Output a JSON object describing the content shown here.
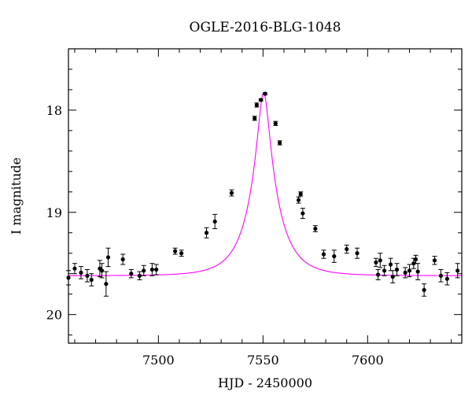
{
  "chart_data": {
    "type": "scatter",
    "title": "OGLE-2016-BLG-1048",
    "xlabel": "HJD - 2450000",
    "ylabel": "I magnitude",
    "xlim": [
      7457,
      7645
    ],
    "ylim": [
      20.28,
      17.4
    ],
    "y_inverted": true,
    "xticks": [
      7500,
      7550,
      7600
    ],
    "yticks": [
      18,
      19,
      20
    ],
    "grid": false,
    "colors": {
      "points": "#000000",
      "fit": "#ff00ff"
    },
    "series": [
      {
        "kind": "observations",
        "x": [
          7457,
          7460,
          7463,
          7466,
          7468,
          7472,
          7473,
          7475,
          7476,
          7483,
          7487,
          7491,
          7493,
          7497,
          7499,
          7508,
          7511,
          7523,
          7527,
          7535,
          7546,
          7547,
          7549,
          7551,
          7556,
          7558,
          7567,
          7568,
          7569,
          7575,
          7579,
          7584,
          7590,
          7595,
          7604,
          7605,
          7606,
          7608,
          7611,
          7612,
          7614,
          7618,
          7620,
          7622,
          7623,
          7624,
          7627,
          7632,
          7635,
          7638,
          7643
        ],
        "y": [
          19.64,
          19.55,
          19.59,
          19.62,
          19.66,
          19.55,
          19.57,
          19.7,
          19.44,
          19.46,
          19.6,
          19.62,
          19.57,
          19.56,
          19.56,
          19.38,
          19.4,
          19.2,
          19.09,
          18.81,
          18.08,
          17.95,
          17.9,
          17.84,
          18.13,
          18.32,
          18.88,
          18.82,
          19.01,
          19.16,
          19.41,
          19.43,
          19.36,
          19.4,
          19.49,
          19.61,
          19.47,
          19.57,
          19.51,
          19.63,
          19.56,
          19.59,
          19.57,
          19.5,
          19.46,
          19.58,
          19.76,
          19.47,
          19.62,
          19.65,
          19.57
        ],
        "yerr": [
          0.07,
          0.05,
          0.06,
          0.06,
          0.06,
          0.08,
          0.07,
          0.12,
          0.09,
          0.05,
          0.04,
          0.04,
          0.05,
          0.06,
          0.05,
          0.03,
          0.03,
          0.05,
          0.07,
          0.03,
          0.02,
          0.02,
          0.01,
          0.01,
          0.02,
          0.02,
          0.03,
          0.02,
          0.05,
          0.03,
          0.04,
          0.06,
          0.04,
          0.05,
          0.04,
          0.05,
          0.07,
          0.05,
          0.06,
          0.06,
          0.06,
          0.05,
          0.06,
          0.05,
          0.04,
          0.08,
          0.06,
          0.04,
          0.06,
          0.06,
          0.07
        ]
      },
      {
        "kind": "model_fit",
        "curve": "magnification",
        "peak_x": 7550.3,
        "peak_mag": 17.83,
        "baseline_mag": 19.62,
        "u0": 0.19,
        "tE": 13.5
      }
    ]
  }
}
